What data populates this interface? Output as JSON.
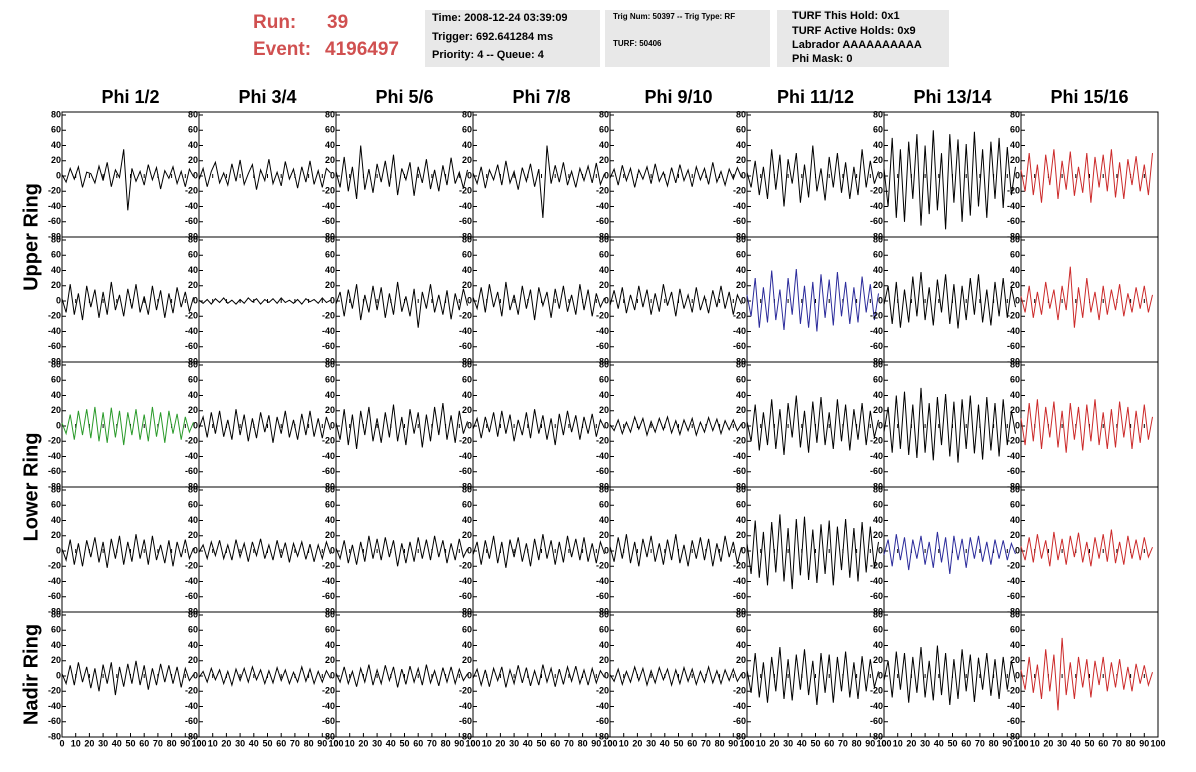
{
  "header": {
    "run_label": "Run:",
    "run": "39",
    "event_label": "Event:",
    "event": "4196497"
  },
  "info_boxes": [
    [
      "Time: 2008-12-24 03:39:09",
      "Trigger: 692.641284 ms",
      "Priority: 4 -- Queue: 4"
    ],
    [
      "Trig Num: 50397 -- Trig Type: RF",
      "TURF: 50406"
    ],
    [
      "TURF This Hold: 0x1",
      "TURF Active Holds: 0x9",
      "Labrador AAAAAAAAAA",
      "Phi Mask: 0"
    ]
  ],
  "type": "line",
  "columns": [
    "Phi 1/2",
    "Phi 3/4",
    "Phi 5/6",
    "Phi 7/8",
    "Phi 9/10",
    "Phi 11/12",
    "Phi 13/14",
    "Phi 15/16"
  ],
  "row_groups": [
    "Upper Ring",
    "Lower Ring",
    "Nadir Ring"
  ],
  "xlim": [
    0,
    100
  ],
  "ylim": [
    -80,
    80
  ],
  "xticks": [
    0,
    10,
    20,
    30,
    40,
    50,
    60,
    70,
    80,
    90,
    100
  ],
  "yticks": [
    -80,
    -60,
    -40,
    -20,
    0,
    20,
    40,
    60,
    80
  ],
  "x": [
    0,
    3,
    6,
    9,
    12,
    15,
    18,
    21,
    24,
    27,
    30,
    33,
    36,
    39,
    42,
    45,
    48,
    51,
    54,
    57,
    60,
    63,
    66,
    69,
    72,
    75,
    78,
    81,
    84,
    87,
    90,
    93,
    96
  ],
  "panels": [
    {
      "color": "#000000",
      "values": [
        2,
        -8,
        10,
        -4,
        12,
        -15,
        5,
        3,
        -9,
        13,
        -6,
        18,
        -14,
        8,
        -2,
        35,
        -45,
        10,
        -7,
        6,
        -12,
        15,
        -5,
        11,
        -17,
        7,
        -3,
        12,
        -10,
        6,
        -14,
        9,
        -1
      ]
    },
    {
      "color": "#000000",
      "values": [
        -5,
        10,
        -14,
        6,
        18,
        -9,
        4,
        -12,
        16,
        -7,
        21,
        -11,
        3,
        15,
        -18,
        8,
        -6,
        22,
        -10,
        5,
        -13,
        19,
        -4,
        9,
        -16,
        12,
        -8,
        20,
        -11,
        7,
        -15,
        10,
        4
      ]
    },
    {
      "color": "#000000",
      "values": [
        6,
        -15,
        25,
        -20,
        12,
        -30,
        40,
        -18,
        9,
        -22,
        16,
        -8,
        20,
        -14,
        28,
        -25,
        10,
        -5,
        18,
        -26,
        12,
        -9,
        22,
        -17,
        8,
        -20,
        14,
        -12,
        24,
        -10,
        5,
        -16,
        8
      ]
    },
    {
      "color": "#000000",
      "values": [
        4,
        -10,
        12,
        -16,
        8,
        -5,
        15,
        -12,
        20,
        -9,
        6,
        -18,
        11,
        -7,
        16,
        -14,
        9,
        -55,
        40,
        -10,
        14,
        -8,
        18,
        -12,
        6,
        -15,
        10,
        -6,
        13,
        -9,
        17,
        -11,
        3
      ]
    },
    {
      "color": "#000000",
      "values": [
        -3,
        9,
        -12,
        14,
        -6,
        10,
        -15,
        8,
        -4,
        12,
        -10,
        16,
        -7,
        5,
        -13,
        11,
        -9,
        15,
        -6,
        8,
        -14,
        12,
        -5,
        10,
        -11,
        18,
        -8,
        6,
        -12,
        9,
        -4,
        11,
        -2
      ]
    },
    {
      "color": "#000000",
      "values": [
        5,
        -15,
        20,
        -25,
        12,
        -30,
        35,
        -18,
        28,
        -40,
        22,
        -10,
        30,
        -35,
        15,
        -28,
        40,
        -20,
        10,
        -32,
        25,
        -15,
        30,
        -22,
        18,
        -30,
        12,
        -25,
        35,
        -15,
        20,
        -10,
        6
      ]
    },
    {
      "color": "#000000",
      "values": [
        10,
        -40,
        50,
        -55,
        35,
        -60,
        45,
        -30,
        55,
        -65,
        40,
        -50,
        60,
        -45,
        30,
        -70,
        55,
        -35,
        48,
        -60,
        42,
        -52,
        58,
        -40,
        35,
        -55,
        45,
        -30,
        50,
        -42,
        38,
        -25,
        12
      ]
    },
    {
      "color": "#cc2a2a",
      "values": [
        8,
        -20,
        30,
        -25,
        15,
        -35,
        28,
        -12,
        35,
        -30,
        20,
        -18,
        32,
        -26,
        12,
        -22,
        30,
        -35,
        25,
        -15,
        28,
        -20,
        35,
        -28,
        18,
        -30,
        22,
        -12,
        26,
        -20,
        15,
        -25,
        30
      ]
    },
    {
      "color": "#000000",
      "values": [
        3,
        -15,
        22,
        -18,
        10,
        -25,
        20,
        -8,
        15,
        -22,
        12,
        -18,
        25,
        -12,
        8,
        -20,
        16,
        -10,
        22,
        -15,
        6,
        -18,
        20,
        -12,
        14,
        -22,
        10,
        -16,
        18,
        -8,
        12,
        -14,
        5
      ]
    },
    {
      "color": "#000000",
      "values": [
        1,
        -3,
        2,
        -4,
        3,
        -2,
        4,
        -3,
        1,
        -4,
        2,
        -3,
        4,
        -1,
        3,
        -4,
        2,
        -2,
        3,
        -3,
        4,
        -2,
        1,
        -3,
        2,
        -4,
        3,
        -1,
        2,
        -3,
        4,
        -2,
        1
      ]
    },
    {
      "color": "#000000",
      "values": [
        -4,
        12,
        -20,
        15,
        -10,
        22,
        -25,
        8,
        -15,
        20,
        -12,
        18,
        -22,
        10,
        -18,
        25,
        -14,
        6,
        -20,
        16,
        -35,
        12,
        -10,
        22,
        -15,
        8,
        -18,
        14,
        -24,
        10,
        -12,
        16,
        -6
      ]
    },
    {
      "color": "#000000",
      "values": [
        5,
        -10,
        18,
        -15,
        22,
        -8,
        12,
        -20,
        25,
        -12,
        8,
        -18,
        20,
        -10,
        15,
        -25,
        18,
        -6,
        12,
        -22,
        16,
        -10,
        20,
        -14,
        8,
        -18,
        22,
        -12,
        15,
        -20,
        10,
        -8,
        4
      ]
    },
    {
      "color": "#000000",
      "values": [
        -6,
        14,
        -10,
        18,
        -16,
        8,
        -12,
        20,
        -8,
        15,
        -18,
        10,
        -14,
        22,
        -6,
        12,
        -20,
        16,
        -10,
        8,
        -15,
        18,
        -12,
        6,
        -16,
        14,
        -8,
        20,
        -10,
        12,
        -18,
        8,
        -4
      ]
    },
    {
      "color": "#2b2b9b",
      "values": [
        8,
        -20,
        30,
        -35,
        18,
        -28,
        40,
        -25,
        15,
        -38,
        30,
        -18,
        42,
        -30,
        20,
        -35,
        25,
        -40,
        35,
        -22,
        28,
        -32,
        38,
        -20,
        25,
        -30,
        18,
        -28,
        32,
        -15,
        22,
        -25,
        10
      ]
    },
    {
      "color": "#000000",
      "values": [
        -5,
        20,
        -30,
        25,
        -35,
        15,
        -28,
        32,
        -20,
        38,
        -25,
        18,
        -32,
        28,
        -15,
        35,
        -30,
        22,
        -36,
        20,
        -25,
        30,
        -18,
        35,
        -28,
        15,
        -32,
        25,
        -20,
        30,
        -22,
        18,
        -8
      ]
    },
    {
      "color": "#cc2a2a",
      "values": [
        6,
        -15,
        20,
        -22,
        12,
        -18,
        25,
        -10,
        15,
        -25,
        20,
        -12,
        45,
        -35,
        18,
        -22,
        30,
        -15,
        12,
        -25,
        20,
        -18,
        15,
        -12,
        22,
        -20,
        10,
        -15,
        18,
        -10,
        20,
        -15,
        8
      ]
    },
    {
      "color": "#2a9a2a",
      "values": [
        4,
        -10,
        15,
        -18,
        20,
        -12,
        22,
        -16,
        25,
        -20,
        18,
        -22,
        24,
        -15,
        20,
        -25,
        18,
        -12,
        22,
        -18,
        15,
        -20,
        25,
        -14,
        18,
        -22,
        20,
        -10,
        16,
        -18,
        12,
        -8,
        5
      ]
    },
    {
      "color": "#000000",
      "values": [
        -3,
        12,
        -15,
        18,
        -10,
        20,
        -14,
        8,
        -18,
        22,
        -12,
        15,
        -20,
        10,
        -16,
        18,
        -8,
        14,
        -22,
        12,
        -10,
        20,
        -15,
        8,
        -18,
        16,
        -12,
        20,
        -14,
        10,
        -16,
        12,
        -5
      ]
    },
    {
      "color": "#000000",
      "values": [
        5,
        -18,
        22,
        -25,
        15,
        -30,
        20,
        -12,
        25,
        -20,
        10,
        -22,
        18,
        -15,
        28,
        -20,
        12,
        -25,
        22,
        -10,
        18,
        -28,
        15,
        -20,
        25,
        -12,
        30,
        -18,
        14,
        -22,
        20,
        -10,
        6
      ]
    },
    {
      "color": "#000000",
      "values": [
        -4,
        10,
        -16,
        12,
        -8,
        18,
        -14,
        20,
        -10,
        15,
        -20,
        8,
        -12,
        18,
        -16,
        22,
        -10,
        14,
        -18,
        10,
        -25,
        16,
        -12,
        20,
        -8,
        14,
        -18,
        12,
        -10,
        16,
        -14,
        8,
        -3
      ]
    },
    {
      "color": "#000000",
      "values": [
        2,
        -6,
        8,
        -10,
        5,
        -8,
        12,
        -4,
        10,
        -12,
        6,
        -8,
        10,
        -5,
        12,
        -9,
        7,
        -11,
        8,
        -6,
        10,
        -12,
        5,
        -8,
        11,
        -6,
        9,
        -10,
        7,
        -5,
        8,
        -6,
        3
      ]
    },
    {
      "color": "#000000",
      "values": [
        6,
        -20,
        28,
        -32,
        18,
        -25,
        35,
        -30,
        22,
        -38,
        30,
        -15,
        40,
        -28,
        20,
        -35,
        32,
        -22,
        38,
        -25,
        18,
        -30,
        35,
        -20,
        28,
        -32,
        22,
        -18,
        30,
        -25,
        20,
        -15,
        8
      ]
    },
    {
      "color": "#000000",
      "values": [
        -8,
        25,
        -35,
        40,
        -30,
        45,
        -38,
        28,
        -42,
        50,
        -35,
        30,
        -45,
        38,
        -25,
        42,
        -40,
        32,
        -48,
        35,
        -30,
        40,
        -36,
        28,
        -44,
        38,
        -32,
        30,
        -40,
        35,
        -25,
        20,
        -10
      ]
    },
    {
      "color": "#cc2a2a",
      "values": [
        10,
        -25,
        30,
        -20,
        35,
        -30,
        25,
        -15,
        32,
        -28,
        20,
        -35,
        30,
        -18,
        25,
        -32,
        28,
        -20,
        35,
        -25,
        18,
        -30,
        22,
        -28,
        32,
        -15,
        25,
        -30,
        20,
        -22,
        28,
        -18,
        12
      ]
    },
    {
      "color": "#000000",
      "values": [
        3,
        -12,
        15,
        -18,
        10,
        -20,
        14,
        -8,
        18,
        -15,
        12,
        -22,
        16,
        -10,
        20,
        -18,
        12,
        -14,
        22,
        -10,
        15,
        -18,
        20,
        -12,
        8,
        -16,
        14,
        -20,
        12,
        -8,
        15,
        -10,
        4
      ]
    },
    {
      "color": "#000000",
      "values": [
        -2,
        8,
        -10,
        12,
        -6,
        14,
        -10,
        8,
        -12,
        15,
        -8,
        10,
        -14,
        12,
        -6,
        16,
        -10,
        8,
        -12,
        14,
        -9,
        11,
        -15,
        10,
        -7,
        12,
        -11,
        9,
        -14,
        8,
        -10,
        12,
        -4
      ]
    },
    {
      "color": "#000000",
      "values": [
        4,
        -10,
        14,
        -16,
        8,
        -18,
        12,
        -14,
        20,
        -10,
        16,
        -12,
        18,
        -8,
        14,
        -20,
        10,
        -16,
        12,
        -14,
        18,
        -10,
        15,
        -12,
        20,
        -8,
        14,
        -16,
        10,
        -12,
        16,
        -8,
        3
      ]
    },
    {
      "color": "#000000",
      "values": [
        -5,
        12,
        -18,
        14,
        -10,
        20,
        -16,
        12,
        -22,
        15,
        -8,
        18,
        -14,
        10,
        -20,
        16,
        -12,
        22,
        -10,
        14,
        -18,
        12,
        -15,
        20,
        -8,
        16,
        -12,
        18,
        -14,
        10,
        -16,
        12,
        -4
      ]
    },
    {
      "color": "#000000",
      "values": [
        6,
        -14,
        18,
        -10,
        22,
        -16,
        12,
        -20,
        16,
        -8,
        20,
        -14,
        10,
        -18,
        15,
        -12,
        22,
        -16,
        8,
        -20,
        14,
        -10,
        18,
        -12,
        16,
        -20,
        10,
        -14,
        20,
        -8,
        12,
        -16,
        5
      ]
    },
    {
      "color": "#000000",
      "values": [
        10,
        -30,
        40,
        -35,
        25,
        -45,
        38,
        -28,
        48,
        -40,
        30,
        -50,
        42,
        -32,
        45,
        -38,
        28,
        -42,
        35,
        -30,
        40,
        -45,
        32,
        -25,
        42,
        -35,
        30,
        -40,
        38,
        -28,
        32,
        -22,
        12
      ]
    },
    {
      "color": "#2b2b9b",
      "values": [
        -5,
        15,
        -20,
        22,
        -12,
        18,
        -25,
        15,
        -10,
        20,
        -18,
        12,
        -22,
        25,
        -15,
        18,
        -30,
        20,
        -12,
        16,
        -22,
        18,
        -10,
        20,
        -14,
        12,
        -18,
        15,
        -10,
        14,
        -12,
        10,
        -4
      ]
    },
    {
      "color": "#cc2a2a",
      "values": [
        6,
        -12,
        18,
        -15,
        22,
        -10,
        14,
        -20,
        25,
        -12,
        16,
        -18,
        20,
        -8,
        24,
        -15,
        12,
        -20,
        18,
        -10,
        22,
        -14,
        28,
        -16,
        12,
        -18,
        20,
        -10,
        15,
        -12,
        18,
        -8,
        5
      ]
    },
    {
      "color": "#000000",
      "values": [
        3,
        -10,
        14,
        -12,
        18,
        -8,
        12,
        -16,
        10,
        -20,
        15,
        -10,
        18,
        -25,
        12,
        -14,
        16,
        -10,
        20,
        -12,
        14,
        -18,
        10,
        -12,
        16,
        -8,
        14,
        -10,
        12,
        -15,
        10,
        -6,
        2
      ]
    },
    {
      "color": "#000000",
      "values": [
        -2,
        6,
        -8,
        10,
        -5,
        8,
        -10,
        6,
        -12,
        9,
        -6,
        10,
        -8,
        12,
        -5,
        8,
        -10,
        7,
        -9,
        11,
        -6,
        8,
        -10,
        5,
        -8,
        12,
        -7,
        9,
        -10,
        6,
        -8,
        7,
        -3
      ]
    },
    {
      "color": "#000000",
      "values": [
        4,
        -8,
        12,
        -10,
        6,
        -14,
        10,
        -8,
        15,
        -12,
        8,
        -10,
        14,
        -6,
        12,
        -15,
        9,
        -11,
        13,
        -8,
        10,
        -12,
        15,
        -9,
        7,
        -13,
        11,
        -8,
        12,
        -10,
        9,
        -6,
        3
      ]
    },
    {
      "color": "#000000",
      "values": [
        -3,
        9,
        -12,
        8,
        -14,
        10,
        -6,
        12,
        -15,
        8,
        -10,
        14,
        -9,
        11,
        -13,
        7,
        -12,
        15,
        -8,
        10,
        -14,
        9,
        -11,
        12,
        -7,
        13,
        -10,
        8,
        -12,
        10,
        -9,
        7,
        -2
      ]
    },
    {
      "color": "#000000",
      "values": [
        2,
        -7,
        9,
        -11,
        6,
        -8,
        12,
        -6,
        10,
        -12,
        7,
        -9,
        11,
        -5,
        9,
        -12,
        8,
        -10,
        11,
        -7,
        9,
        -11,
        6,
        -8,
        12,
        -9,
        7,
        -10,
        8,
        -6,
        9,
        -7,
        3
      ]
    },
    {
      "color": "#000000",
      "values": [
        8,
        -22,
        30,
        -28,
        18,
        -35,
        25,
        -20,
        38,
        -30,
        22,
        -32,
        28,
        -18,
        35,
        -25,
        20,
        -38,
        30,
        -22,
        28,
        -35,
        25,
        -20,
        32,
        -28,
        18,
        -30,
        26,
        -20,
        22,
        -15,
        6
      ]
    },
    {
      "color": "#000000",
      "values": [
        -6,
        20,
        -28,
        32,
        -18,
        30,
        -35,
        25,
        -22,
        38,
        -28,
        20,
        -32,
        40,
        -25,
        30,
        -38,
        22,
        -30,
        35,
        -20,
        28,
        -34,
        24,
        -18,
        30,
        -26,
        22,
        -30,
        25,
        -18,
        20,
        -8
      ]
    },
    {
      "color": "#cc2a2a",
      "values": [
        8,
        -18,
        25,
        -22,
        15,
        -30,
        35,
        -20,
        28,
        -45,
        50,
        -25,
        18,
        -30,
        25,
        -15,
        22,
        -28,
        20,
        -12,
        25,
        -20,
        18,
        -15,
        22,
        -18,
        12,
        -20,
        16,
        -10,
        14,
        -12,
        5
      ]
    }
  ]
}
